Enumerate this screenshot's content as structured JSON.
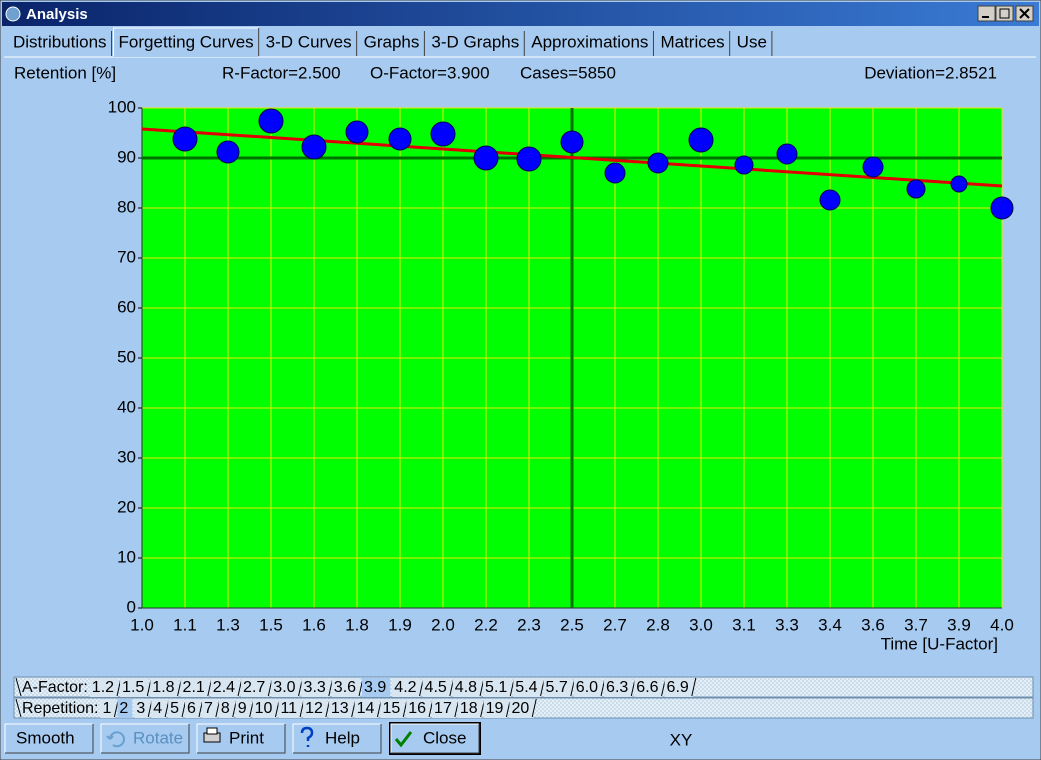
{
  "window": {
    "title": "Analysis"
  },
  "tabs": {
    "items": [
      "Distributions",
      "Forgetting Curves",
      "3-D Curves",
      "Graphs",
      "3-D Graphs",
      "Approximations",
      "Matrices",
      "Use"
    ],
    "selected": 1
  },
  "parameters": [
    "R-Factor=2.500",
    "O-Factor=3.900",
    "Cases=5850"
  ],
  "deviation": "Deviation=2.8521",
  "chart_data": {
    "type": "scatter",
    "ylabel": "Retention [%]",
    "xlabel": "Time [U-Factor]",
    "categories": [
      "1.0",
      "1.1",
      "1.3",
      "1.5",
      "1.6",
      "1.8",
      "1.9",
      "2.0",
      "2.2",
      "2.3",
      "2.5",
      "2.7",
      "2.8",
      "3.0",
      "3.1",
      "3.3",
      "3.4",
      "3.6",
      "3.7",
      "3.9",
      "4.0"
    ],
    "series": [
      {
        "color": "#0000ff",
        "values": [
          null,
          93.8,
          91.2,
          97.4,
          92.2,
          95.2,
          93.8,
          94.8,
          90,
          89.8,
          93.2,
          87,
          89,
          93.6,
          88.6,
          90.8,
          81.6,
          88.2,
          83.8,
          84.8,
          80
        ],
        "sizes": [
          null,
          12,
          11,
          12,
          12,
          11,
          11,
          12,
          12,
          12,
          11,
          10,
          10,
          12,
          9,
          10,
          10,
          10,
          9,
          8,
          11
        ]
      }
    ],
    "trend": {
      "color": "#e00000",
      "values": [
        95.8,
        84.4
      ]
    },
    "crosshair": {
      "x": 2.5,
      "y": 90,
      "color": "#007000"
    },
    "ylim": [
      0,
      100
    ],
    "yticks": [
      0,
      10,
      20,
      30,
      40,
      50,
      60,
      70,
      80,
      90,
      100
    ],
    "grid": true,
    "grid_color": "#e8e800",
    "background": "#00ff00"
  },
  "a_factor": {
    "label": "A-Factor:",
    "items": [
      "1.2",
      "1.5",
      "1.8",
      "2.1",
      "2.4",
      "2.7",
      "3.0",
      "3.3",
      "3.6",
      "3.9",
      "4.2",
      "4.5",
      "4.8",
      "5.1",
      "5.4",
      "5.7",
      "6.0",
      "6.3",
      "6.6",
      "6.9"
    ],
    "selected": 9
  },
  "repetition": {
    "label": "Repetition:",
    "items": [
      "1",
      "2",
      "3",
      "4",
      "5",
      "6",
      "7",
      "8",
      "9",
      "10",
      "11",
      "12",
      "13",
      "14",
      "15",
      "16",
      "17",
      "18",
      "19",
      "20"
    ],
    "selected": 1
  },
  "buttons": [
    "Smooth",
    "Rotate",
    "Print",
    "Help",
    "Close"
  ],
  "mode": "XY"
}
